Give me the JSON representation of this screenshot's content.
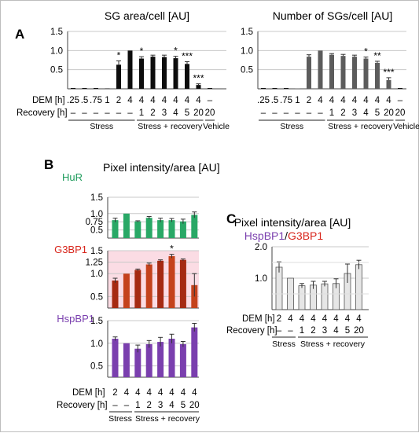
{
  "panel_labels": {
    "a": "A",
    "b": "B",
    "c": "C"
  },
  "colors": {
    "black_bar": "#0d0d0d",
    "gray_bar": "#5c5c5c",
    "hur": "#29a866",
    "hur_text": "#1e9c5c",
    "g3bp1_a": "#a52a12",
    "g3bp1_b": "#c4421c",
    "g3bp1_text": "#d8261c",
    "g3bp1_bg": "#fbdce4",
    "hspbp1": "#7a3fae",
    "hspbp1_text": "#7a3fae",
    "ratio_bar": "#e6e6e6",
    "grid": "#c8c8c8",
    "hur_bg": "#e3f4ea"
  },
  "chart_data": [
    {
      "id": "A-left",
      "type": "bar",
      "title": "SG area/cell [AU]",
      "ylim": [
        0,
        1.5
      ],
      "yticks": [
        "1.5",
        "1.0",
        "0.5"
      ],
      "categories": [
        ".25",
        ".5",
        ".75",
        "1",
        "2",
        "4",
        "4/1",
        "4/2",
        "4/3",
        "4/4",
        "4/5",
        "4/20",
        "-/20"
      ],
      "values": [
        0.0,
        0.0,
        0.0,
        0.01,
        0.63,
        1.0,
        0.79,
        0.84,
        0.83,
        0.8,
        0.65,
        0.1,
        0.0
      ],
      "errors": [
        0,
        0,
        0,
        0,
        0.1,
        0,
        0.05,
        0.04,
        0.05,
        0.05,
        0.06,
        0.03,
        0
      ],
      "stars": [
        "",
        "",
        "",
        "",
        "*",
        "",
        "*",
        "",
        "",
        "*",
        "***",
        "***",
        ""
      ]
    },
    {
      "id": "A-right",
      "type": "bar",
      "title": "Number of SGs/cell [AU]",
      "ylim": [
        0,
        1.5
      ],
      "yticks": [
        "1.5",
        "1.0",
        "0.5"
      ],
      "categories": [
        ".25",
        ".5",
        ".75",
        "1",
        "2",
        "4",
        "4/1",
        "4/2",
        "4/3",
        "4/4",
        "4/5",
        "4/20",
        "-/20"
      ],
      "values": [
        0.0,
        0.0,
        0.0,
        0.01,
        0.84,
        1.0,
        0.89,
        0.86,
        0.84,
        0.79,
        0.68,
        0.23,
        0.0
      ],
      "errors": [
        0,
        0,
        0,
        0,
        0.05,
        0,
        0.03,
        0.04,
        0.04,
        0.04,
        0.04,
        0.06,
        0
      ],
      "stars": [
        "",
        "",
        "",
        "",
        "",
        "",
        "",
        "",
        "",
        "*",
        "**",
        "***",
        ""
      ]
    },
    {
      "id": "B-HuR",
      "type": "bar",
      "label": "HuR",
      "ylim": [
        0.25,
        1.5
      ],
      "yticks": [
        "1.5",
        "1.0",
        "0.75",
        "0.5"
      ],
      "categories": [
        "2",
        "4",
        "4/1",
        "4/2",
        "4/3",
        "4/4",
        "4/5",
        "4/20"
      ],
      "values": [
        0.8,
        1.0,
        0.76,
        0.87,
        0.8,
        0.8,
        0.76,
        0.96
      ],
      "errors": [
        0.06,
        0,
        0.02,
        0.04,
        0.06,
        0.05,
        0.07,
        0.09
      ],
      "stars": [
        "",
        "",
        "",
        "",
        "",
        "",
        "",
        ""
      ]
    },
    {
      "id": "B-G3BP1",
      "type": "bar",
      "label": "G3BP1",
      "ylim": [
        0.25,
        1.5
      ],
      "yticks": [
        "1.5",
        "1.25",
        "1.0",
        "0.5"
      ],
      "categories": [
        "2",
        "4",
        "4/1",
        "4/2",
        "4/3",
        "4/4",
        "4/5",
        "4/20"
      ],
      "values": [
        0.85,
        1.0,
        1.08,
        1.2,
        1.28,
        1.38,
        1.3,
        0.75
      ],
      "errors": [
        0.05,
        0,
        0.02,
        0.03,
        0.02,
        0.04,
        0.02,
        0.25
      ],
      "stars": [
        "",
        "",
        "",
        "",
        "",
        "*",
        "",
        ""
      ]
    },
    {
      "id": "B-HspBP1",
      "type": "bar",
      "label": "HspBP1",
      "ylim": [
        0.25,
        1.5
      ],
      "yticks": [
        "1.5",
        "1.0",
        "0.5"
      ],
      "categories": [
        "2",
        "4",
        "4/1",
        "4/2",
        "4/3",
        "4/4",
        "4/5",
        "4/20"
      ],
      "values": [
        1.1,
        1.0,
        0.88,
        0.98,
        1.03,
        1.1,
        0.98,
        1.35
      ],
      "errors": [
        0.04,
        0,
        0.08,
        0.08,
        0.1,
        0.1,
        0.06,
        0.09
      ],
      "stars": [
        "",
        "",
        "",
        "",
        "",
        "",
        "",
        ""
      ]
    },
    {
      "id": "C-ratio",
      "type": "bar",
      "title": "Pixel intensity/area [AU]",
      "ylim": [
        0,
        2.0
      ],
      "yticks": [
        "2.0",
        "1.0"
      ],
      "categories": [
        "2",
        "4",
        "4/1",
        "4/2",
        "4/3",
        "4/4",
        "4/5",
        "4/20"
      ],
      "values": [
        1.35,
        1.0,
        0.76,
        0.78,
        0.82,
        0.83,
        1.15,
        1.43
      ],
      "errors": [
        0.17,
        0,
        0.07,
        0.12,
        0.08,
        0.15,
        0.3,
        0.14
      ],
      "stars": [
        "",
        "",
        "",
        "",
        "",
        "",
        "",
        ""
      ]
    }
  ],
  "A_axis": {
    "dem_label": "DEM [h]",
    "rec_label": "Recovery [h]",
    "dem": [
      ".25",
      ".5",
      ".75",
      "1",
      "2",
      "4",
      "4",
      "4",
      "4",
      "4",
      "4",
      "4",
      "–"
    ],
    "rec": [
      "–",
      "–",
      "–",
      "–",
      "–",
      "–",
      "1",
      "2",
      "3",
      "4",
      "5",
      "20",
      "20"
    ],
    "groups": [
      "Stress",
      "Stress + recovery",
      "Vehicle"
    ]
  },
  "B_title": "Pixel intensity/area [AU]",
  "B_axis": {
    "dem_label": "DEM [h]",
    "rec_label": "Recovery [h]",
    "dem": [
      "2",
      "4",
      "4",
      "4",
      "4",
      "4",
      "4",
      "4"
    ],
    "rec": [
      "–",
      "–",
      "1",
      "2",
      "3",
      "4",
      "5",
      "20"
    ],
    "groups": [
      "Stress",
      "Stress + recovery"
    ]
  },
  "C_label": {
    "part1": "HspBP1",
    "sep": "/",
    "part2": "G3BP1"
  },
  "C_axis": {
    "dem_label": "DEM [h]",
    "rec_label": "Recovery [h]",
    "dem": [
      "2",
      "4",
      "4",
      "4",
      "4",
      "4",
      "4",
      "4"
    ],
    "rec": [
      "–",
      "–",
      "1",
      "2",
      "3",
      "4",
      "5",
      "20"
    ],
    "groups": [
      "Stress",
      "Stress + recovery"
    ]
  }
}
